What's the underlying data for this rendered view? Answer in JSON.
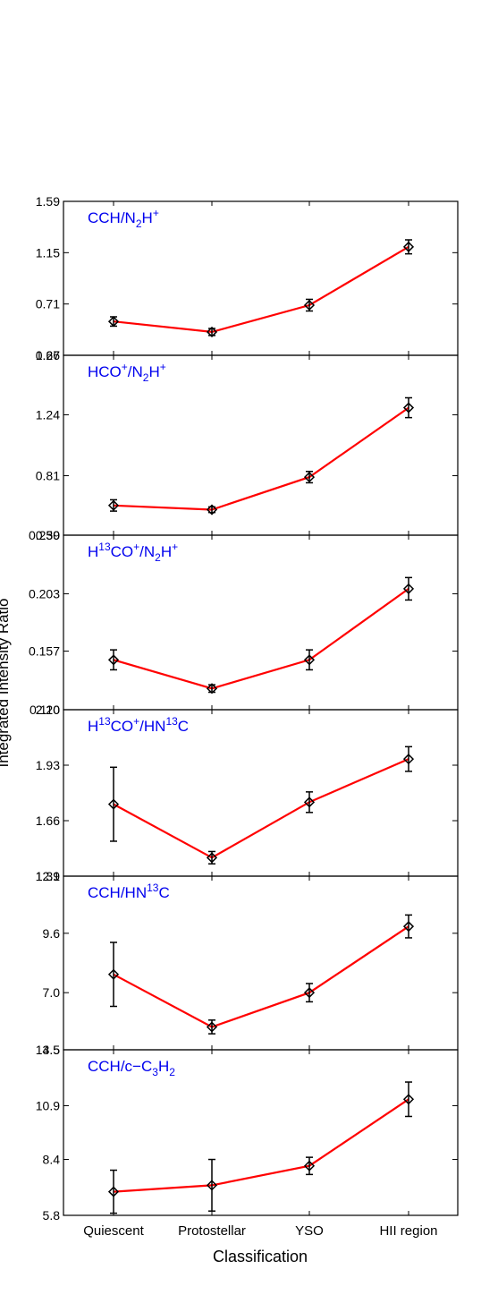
{
  "figure": {
    "xlabel": "Classification",
    "ylabel": "Integrated Intensity Ratio"
  },
  "chart_data": [
    {
      "type": "line",
      "title": "CCH/N2H+",
      "title_rich": [
        [
          "CCH/N",
          ""
        ],
        [
          "2",
          "sub"
        ],
        [
          "H",
          ""
        ],
        [
          "+",
          "sup"
        ]
      ],
      "categories": [
        "Quiescent",
        "Protostellar",
        "YSO",
        "HII region"
      ],
      "values": [
        0.56,
        0.47,
        0.7,
        1.2
      ],
      "errors": [
        0.04,
        0.03,
        0.05,
        0.06
      ],
      "yticks": [
        "0.27",
        "0.71",
        "1.15",
        "1.59"
      ],
      "ylim": [
        0.27,
        1.59
      ],
      "line_color": "#ff0000"
    },
    {
      "type": "line",
      "title": "HCO+/N2H+",
      "title_rich": [
        [
          "HCO",
          ""
        ],
        [
          "+",
          "sup"
        ],
        [
          "/N",
          ""
        ],
        [
          "2",
          "sub"
        ],
        [
          "H",
          ""
        ],
        [
          "+",
          "sup"
        ]
      ],
      "categories": [
        "Quiescent",
        "Protostellar",
        "YSO",
        "HII region"
      ],
      "values": [
        0.6,
        0.57,
        0.8,
        1.29
      ],
      "errors": [
        0.04,
        0.02,
        0.04,
        0.07
      ],
      "yticks": [
        "0.39",
        "0.81",
        "1.24",
        "1.66"
      ],
      "ylim": [
        0.39,
        1.66
      ],
      "line_color": "#ff0000"
    },
    {
      "type": "line",
      "title": "H13CO+/N2H+",
      "title_rich": [
        [
          "H",
          ""
        ],
        [
          "13",
          "sup"
        ],
        [
          "CO",
          ""
        ],
        [
          "+",
          "sup"
        ],
        [
          "/N",
          ""
        ],
        [
          "2",
          "sub"
        ],
        [
          "H",
          ""
        ],
        [
          "+",
          "sup"
        ]
      ],
      "categories": [
        "Quiescent",
        "Protostellar",
        "YSO",
        "HII region"
      ],
      "values": [
        0.15,
        0.127,
        0.15,
        0.207
      ],
      "errors": [
        0.008,
        0.003,
        0.008,
        0.009
      ],
      "yticks": [
        "0.110",
        "0.157",
        "0.203",
        "0.250"
      ],
      "ylim": [
        0.11,
        0.25
      ],
      "line_color": "#ff0000"
    },
    {
      "type": "line",
      "title": "H13CO+/HN13C",
      "title_rich": [
        [
          "H",
          ""
        ],
        [
          "13",
          "sup"
        ],
        [
          "CO",
          ""
        ],
        [
          "+",
          "sup"
        ],
        [
          "/HN",
          ""
        ],
        [
          "13",
          "sup"
        ],
        [
          "C",
          ""
        ]
      ],
      "categories": [
        "Quiescent",
        "Protostellar",
        "YSO",
        "HII region"
      ],
      "values": [
        1.74,
        1.48,
        1.75,
        1.96
      ],
      "errors": [
        0.18,
        0.03,
        0.05,
        0.06
      ],
      "yticks": [
        "1.39",
        "1.66",
        "1.93",
        "2.20"
      ],
      "ylim": [
        1.39,
        2.2
      ],
      "line_color": "#ff0000"
    },
    {
      "type": "line",
      "title": "CCH/HN13C",
      "title_rich": [
        [
          "CCH/HN",
          ""
        ],
        [
          "13",
          "sup"
        ],
        [
          "C",
          ""
        ]
      ],
      "categories": [
        "Quiescent",
        "Protostellar",
        "YSO",
        "HII region"
      ],
      "values": [
        7.8,
        5.5,
        7.0,
        9.9
      ],
      "errors": [
        1.4,
        0.3,
        0.4,
        0.5
      ],
      "yticks": [
        "4.5",
        "7.0",
        "9.6",
        "12.1"
      ],
      "ylim": [
        4.5,
        12.1
      ],
      "line_color": "#ff0000"
    },
    {
      "type": "line",
      "title": "CCH/c-C3H2",
      "title_rich": [
        [
          "CCH/c−C",
          ""
        ],
        [
          "3",
          "sub"
        ],
        [
          "H",
          ""
        ],
        [
          "2",
          "sub"
        ]
      ],
      "categories": [
        "Quiescent",
        "Protostellar",
        "YSO",
        "HII region"
      ],
      "values": [
        6.9,
        7.2,
        8.1,
        11.2
      ],
      "errors": [
        1.0,
        1.2,
        0.4,
        0.8
      ],
      "yticks": [
        "5.8",
        "8.4",
        "10.9",
        "13.5"
      ],
      "ylim": [
        5.8,
        13.5
      ],
      "line_color": "#ff0000"
    }
  ]
}
